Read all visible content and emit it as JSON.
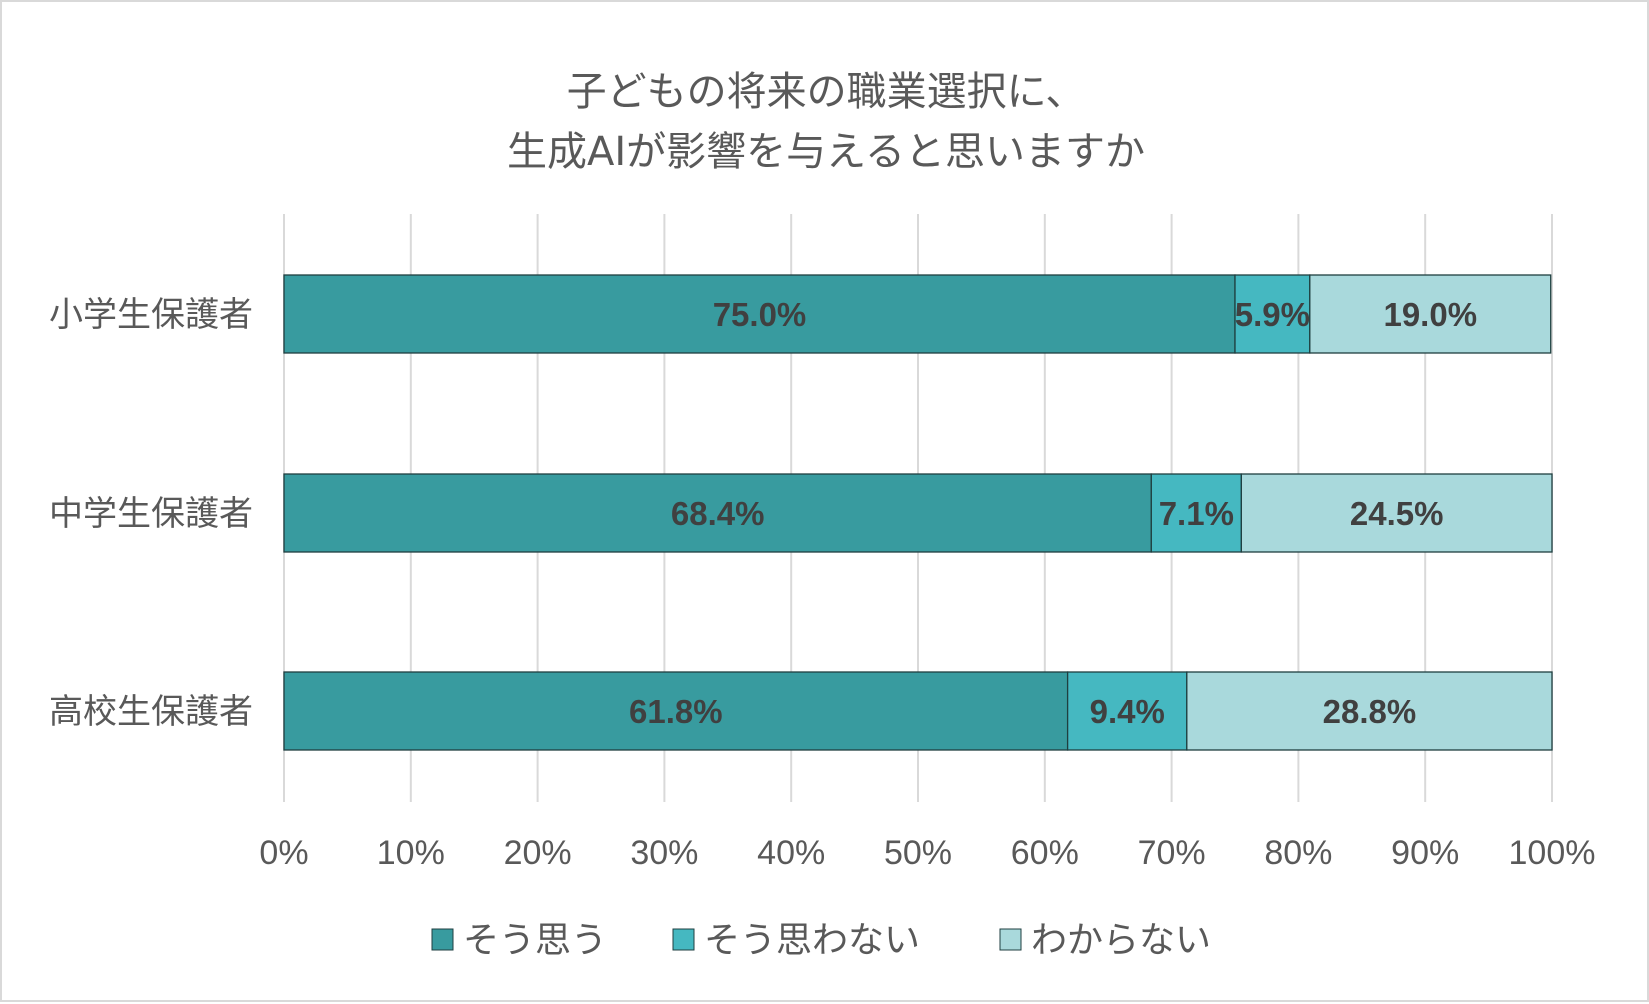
{
  "chart_data": {
    "type": "bar",
    "orientation": "horizontal",
    "stacked": true,
    "title_lines": [
      "子どもの将来の職業選択に、",
      "生成AIが影響を与えると思いますか"
    ],
    "categories": [
      "小学生保護者",
      "中学生保護者",
      "高校生保護者"
    ],
    "series": [
      {
        "name": "そう思う",
        "values": [
          75.0,
          68.4,
          61.8
        ],
        "color": "#389b9f"
      },
      {
        "name": "そう思わない",
        "values": [
          5.9,
          7.1,
          9.4
        ],
        "color": "#45b8c1"
      },
      {
        "name": "わからない",
        "values": [
          19.0,
          24.5,
          28.8
        ],
        "color": "#a9d9dc"
      }
    ],
    "data_labels": [
      [
        "75.0%",
        "68.4%",
        "61.8%"
      ],
      [
        "5.9%",
        "7.1%",
        "9.4%"
      ],
      [
        "19.0%",
        "24.5%",
        "28.8%"
      ]
    ],
    "x_ticks": [
      0,
      10,
      20,
      30,
      40,
      50,
      60,
      70,
      80,
      90,
      100
    ],
    "x_tick_labels": [
      "0%",
      "10%",
      "20%",
      "30%",
      "40%",
      "50%",
      "60%",
      "70%",
      "80%",
      "90%",
      "100%"
    ],
    "xlim": [
      0,
      100
    ],
    "grid": "vertical",
    "legend_position": "bottom"
  }
}
